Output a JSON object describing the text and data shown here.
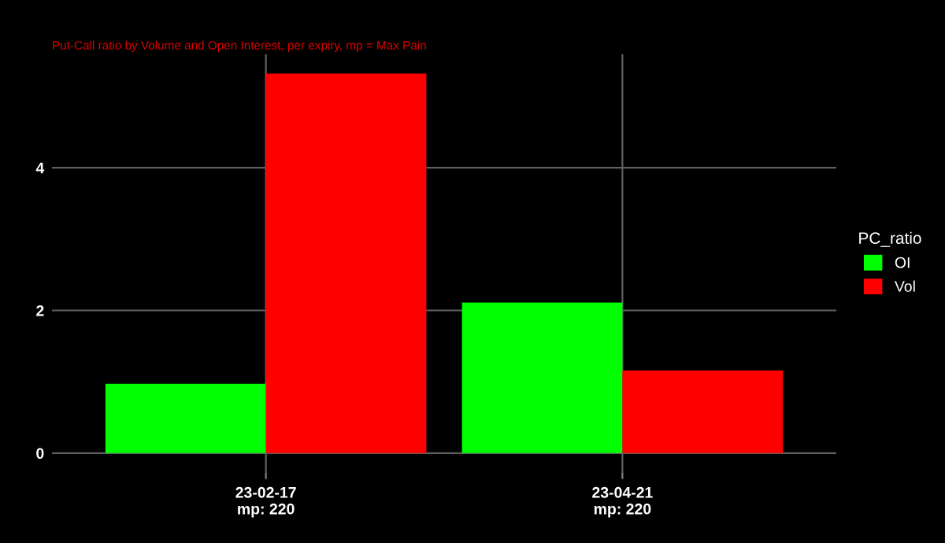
{
  "chart_data": {
    "type": "bar",
    "subtitle": "Put-Call ratio by Volume and Open Interest, per expiry, mp = Max Pain",
    "categories": [
      "23-02-17\nmp: 220",
      "23-04-21\nmp: 220"
    ],
    "series": [
      {
        "name": "OI",
        "color": "#00ff00",
        "values": [
          0.97,
          2.11
        ]
      },
      {
        "name": "Vol",
        "color": "#ff0000",
        "values": [
          5.32,
          1.16
        ]
      }
    ],
    "legend_title": "PC_ratio",
    "legend": "right",
    "ylim": [
      -0.27,
      5.59
    ],
    "yticks": [
      0,
      2,
      4
    ],
    "grid": true
  }
}
